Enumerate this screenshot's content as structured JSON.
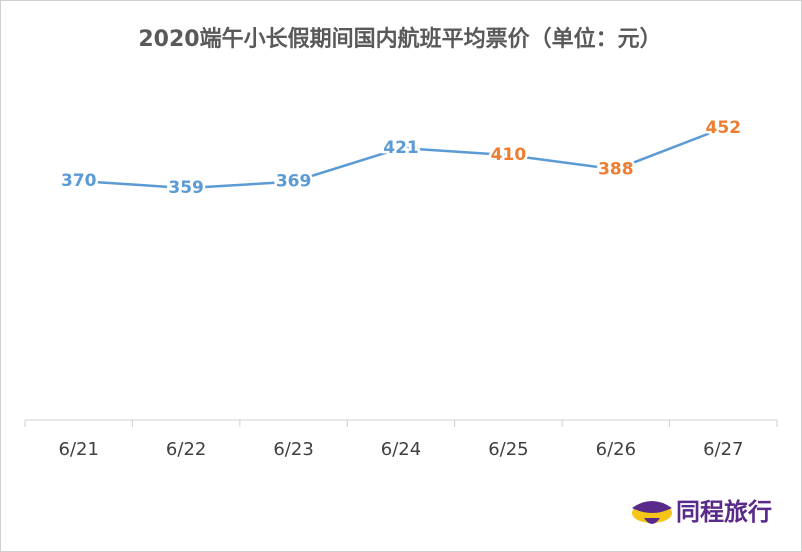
{
  "chart_data": {
    "type": "line",
    "title": "2020端午小长假期间国内航班平均票价（单位：元）",
    "categories": [
      "6/21",
      "6/22",
      "6/23",
      "6/24",
      "6/25",
      "6/26",
      "6/27"
    ],
    "series": [
      {
        "color": "#5b9bd5",
        "values": [
          370,
          359,
          369,
          421,
          410,
          388,
          452
        ],
        "label_colors": [
          "#5b9bd5",
          "#5b9bd5",
          "#5b9bd5",
          "#5b9bd5",
          "#ed7d31",
          "#ed7d31",
          "#ed7d31"
        ]
      }
    ],
    "ylim": [
      0,
      500
    ]
  },
  "logo": {
    "text": "同程旅行"
  }
}
